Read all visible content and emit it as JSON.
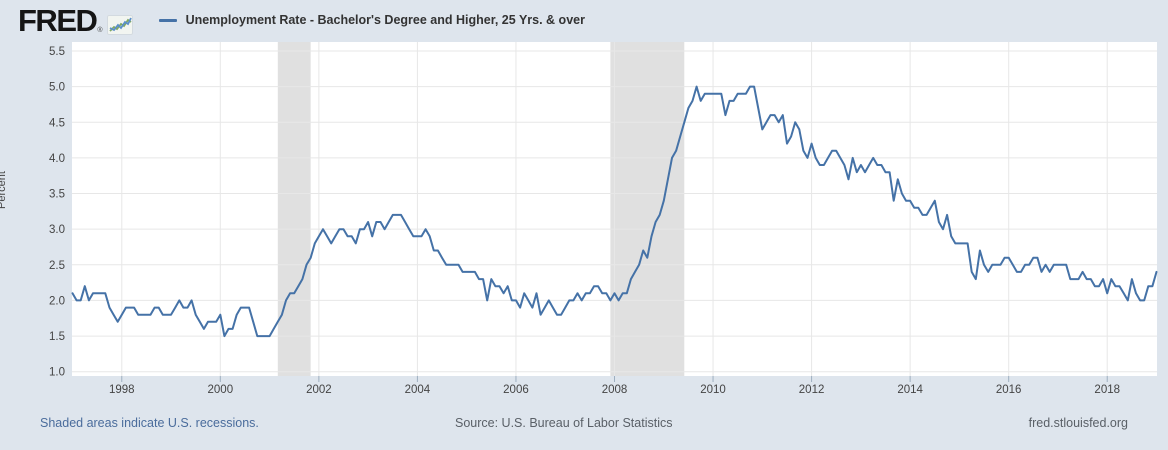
{
  "header": {
    "logo_text": "FRED",
    "logo_registered": "®",
    "legend_label": "Unemployment Rate - Bachelor's Degree and Higher, 25 Yrs. & over"
  },
  "footer": {
    "recession_note": "Shaded areas indicate U.S. recessions.",
    "source": "Source: U.S. Bureau of Labor Statistics",
    "site": "fred.stlouisfed.org"
  },
  "chart_data": {
    "type": "line",
    "title": "Unemployment Rate - Bachelor's Degree and Higher, 25 Yrs. & over",
    "ylabel": "Percent",
    "ylim": [
      1.0,
      5.5
    ],
    "yticks": [
      1.0,
      1.5,
      2.0,
      2.5,
      3.0,
      3.5,
      4.0,
      4.5,
      5.0,
      5.5
    ],
    "xticks": [
      1998,
      2000,
      2002,
      2004,
      2006,
      2008,
      2010,
      2012,
      2014,
      2016,
      2018
    ],
    "frequency": "monthly",
    "x_range": {
      "start": "1997-01",
      "end": "2019-01"
    },
    "grid": true,
    "legend_position": "top-left",
    "colors": {
      "line": "#4572a7",
      "recession_band": "#e0e0e0",
      "grid": "#e7e7e7",
      "axis_text": "#444444",
      "tick_mark": "#9eafc0",
      "plot_background": "#ffffff",
      "page_background": "#dee5ed"
    },
    "recessions": [
      {
        "start": "2001-03",
        "end": "2001-11"
      },
      {
        "start": "2007-12",
        "end": "2009-06"
      }
    ],
    "series": [
      {
        "name": "Unemployment Rate - Bachelor's Degree and Higher, 25 Yrs. & over",
        "units": "Percent",
        "values": [
          2.1,
          2.0,
          2.0,
          2.2,
          2.0,
          2.1,
          2.1,
          2.1,
          2.1,
          1.9,
          1.8,
          1.7,
          1.8,
          1.9,
          1.9,
          1.9,
          1.8,
          1.8,
          1.8,
          1.8,
          1.9,
          1.9,
          1.8,
          1.8,
          1.8,
          1.9,
          2.0,
          1.9,
          1.9,
          2.0,
          1.8,
          1.7,
          1.6,
          1.7,
          1.7,
          1.7,
          1.8,
          1.5,
          1.6,
          1.6,
          1.8,
          1.9,
          1.9,
          1.9,
          1.7,
          1.5,
          1.5,
          1.5,
          1.5,
          1.6,
          1.7,
          1.8,
          2.0,
          2.1,
          2.1,
          2.2,
          2.3,
          2.5,
          2.6,
          2.8,
          2.9,
          3.0,
          2.9,
          2.8,
          2.9,
          3.0,
          3.0,
          2.9,
          2.9,
          2.8,
          3.0,
          3.0,
          3.1,
          2.9,
          3.1,
          3.1,
          3.0,
          3.1,
          3.2,
          3.2,
          3.2,
          3.1,
          3.0,
          2.9,
          2.9,
          2.9,
          3.0,
          2.9,
          2.7,
          2.7,
          2.6,
          2.5,
          2.5,
          2.5,
          2.5,
          2.4,
          2.4,
          2.4,
          2.4,
          2.3,
          2.3,
          2.0,
          2.3,
          2.2,
          2.2,
          2.1,
          2.2,
          2.0,
          2.0,
          1.9,
          2.1,
          2.0,
          1.9,
          2.1,
          1.8,
          1.9,
          2.0,
          1.9,
          1.8,
          1.8,
          1.9,
          2.0,
          2.0,
          2.1,
          2.0,
          2.1,
          2.1,
          2.2,
          2.2,
          2.1,
          2.1,
          2.0,
          2.1,
          2.0,
          2.1,
          2.1,
          2.3,
          2.4,
          2.5,
          2.7,
          2.6,
          2.9,
          3.1,
          3.2,
          3.4,
          3.7,
          4.0,
          4.1,
          4.3,
          4.5,
          4.7,
          4.8,
          5.0,
          4.8,
          4.9,
          4.9,
          4.9,
          4.9,
          4.9,
          4.6,
          4.8,
          4.8,
          4.9,
          4.9,
          4.9,
          5.0,
          5.0,
          4.7,
          4.4,
          4.5,
          4.6,
          4.6,
          4.5,
          4.6,
          4.2,
          4.3,
          4.5,
          4.4,
          4.1,
          4.0,
          4.2,
          4.0,
          3.9,
          3.9,
          4.0,
          4.1,
          4.1,
          4.0,
          3.9,
          3.7,
          4.0,
          3.8,
          3.9,
          3.8,
          3.9,
          4.0,
          3.9,
          3.9,
          3.8,
          3.8,
          3.4,
          3.7,
          3.5,
          3.4,
          3.4,
          3.3,
          3.3,
          3.2,
          3.2,
          3.3,
          3.4,
          3.1,
          3.0,
          3.2,
          2.9,
          2.8,
          2.8,
          2.8,
          2.8,
          2.4,
          2.3,
          2.7,
          2.5,
          2.4,
          2.5,
          2.5,
          2.5,
          2.6,
          2.6,
          2.5,
          2.4,
          2.4,
          2.5,
          2.5,
          2.6,
          2.6,
          2.4,
          2.5,
          2.4,
          2.5,
          2.5,
          2.5,
          2.5,
          2.3,
          2.3,
          2.3,
          2.4,
          2.3,
          2.3,
          2.2,
          2.2,
          2.3,
          2.1,
          2.3,
          2.2,
          2.2,
          2.1,
          2.0,
          2.3,
          2.1,
          2.0,
          2.0,
          2.2,
          2.2,
          2.4
        ]
      }
    ]
  }
}
